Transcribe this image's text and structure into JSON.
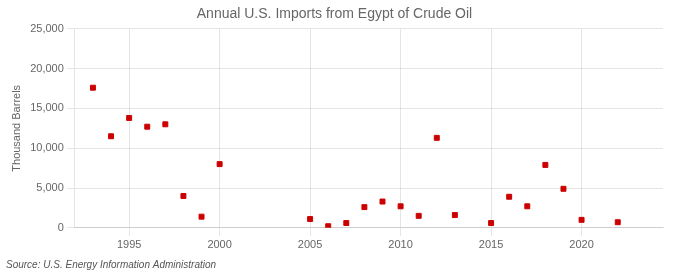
{
  "chart_data": {
    "type": "scatter",
    "title": "Annual U.S. Imports from Egypt of Crude Oil",
    "ylabel": "Thousand Barrels",
    "annotation": "Source: U.S. Energy Information Administration",
    "x": [
      1993,
      1994,
      1995,
      1996,
      1997,
      1998,
      1999,
      2000,
      2005,
      2006,
      2007,
      2008,
      2009,
      2010,
      2011,
      2012,
      2013,
      2015,
      2016,
      2017,
      2018,
      2019,
      2020,
      2022
    ],
    "values": [
      17600,
      11500,
      13800,
      12700,
      13000,
      4000,
      1400,
      8000,
      1100,
      200,
      600,
      2600,
      3300,
      2700,
      1500,
      11300,
      1600,
      600,
      3900,
      2700,
      7900,
      4900,
      1000,
      700
    ],
    "color": "#cc0000",
    "marker": "square",
    "xlim": [
      1992,
      2024.5
    ],
    "xticks": [
      1995,
      2000,
      2005,
      2010,
      2015,
      2020
    ],
    "ylim": [
      0,
      25000
    ],
    "yticks": [
      0,
      {
        "value": 5000,
        "label": "5,000"
      },
      {
        "value": 10000,
        "label": "10,000"
      },
      {
        "value": 15000,
        "label": "15,000"
      },
      {
        "value": 20000,
        "label": "20,000"
      },
      {
        "value": 25000,
        "label": "25,000"
      }
    ],
    "grid": true
  }
}
